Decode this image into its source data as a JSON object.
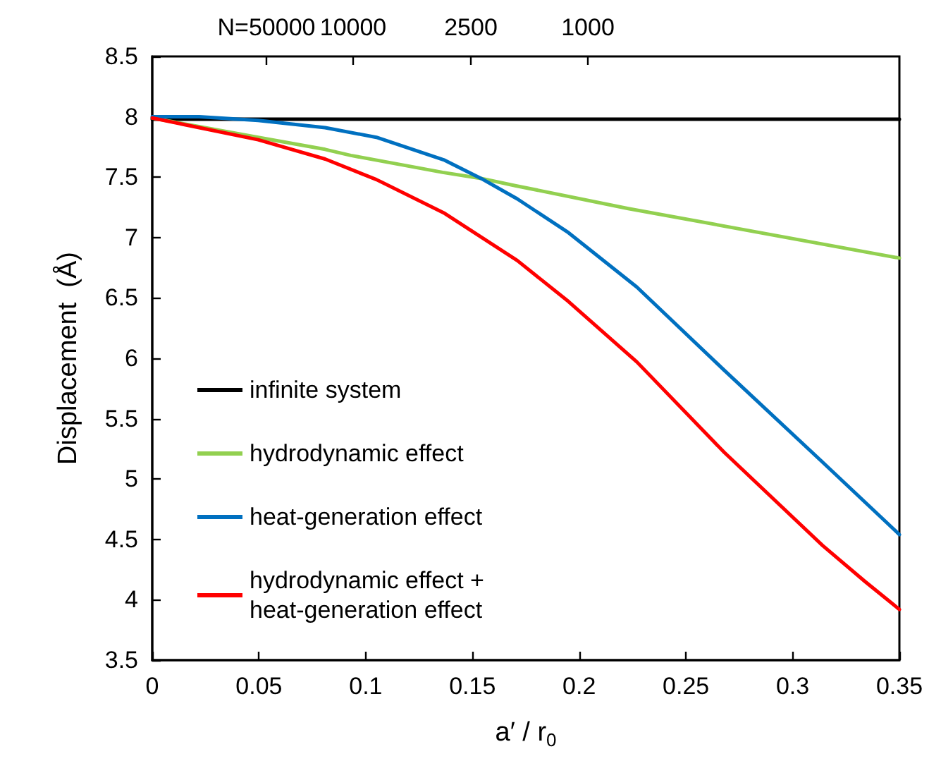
{
  "chart_data": {
    "type": "line",
    "xlabel": "a′ / r$_{0}$",
    "ylabel": "Displacement  (Å)",
    "xlim": [
      0,
      0.35
    ],
    "xticks": [
      0,
      0.05,
      0.1,
      0.15,
      0.2,
      0.25,
      0.3,
      0.35
    ],
    "ylim": [
      3.5,
      8.5
    ],
    "yticks": [
      3.5,
      4,
      4.5,
      5,
      5.5,
      6,
      6.5,
      7,
      7.5,
      8,
      8.5
    ],
    "annotations": [
      "N=50000",
      "10000",
      "2500",
      "1000"
    ],
    "grid": false,
    "legend": "bottom left",
    "marker": "none",
    "line_style": "solid",
    "series": [
      {
        "name": "infinite system",
        "color": "#000000",
        "x": [
          0,
          0.35
        ],
        "values": [
          7.98,
          7.98
        ]
      },
      {
        "name": "hydrodynamic effect",
        "color": "#92d050",
        "x": [
          0,
          0.0496,
          0.081,
          0.093,
          0.136,
          0.154,
          0.17,
          0.223,
          0.35
        ],
        "values": [
          7.99,
          7.83,
          7.73,
          7.68,
          7.54,
          7.49,
          7.43,
          7.24,
          6.83
        ]
      },
      {
        "name": "heat-generation effect",
        "color": "#0070c0",
        "x": [
          0,
          0.022,
          0.0496,
          0.081,
          0.105,
          0.137,
          0.154,
          0.171,
          0.195,
          0.227,
          0.268,
          0.314,
          0.35
        ],
        "values": [
          8.0,
          8.0,
          7.97,
          7.91,
          7.83,
          7.64,
          7.49,
          7.32,
          7.04,
          6.59,
          5.9,
          5.14,
          4.54
        ]
      },
      {
        "name": "hydrodynamic effect +\nheat-generation effect",
        "color": "#ff0000",
        "x": [
          0,
          0.0496,
          0.081,
          0.105,
          0.137,
          0.171,
          0.195,
          0.227,
          0.268,
          0.314,
          0.334,
          0.35
        ],
        "values": [
          7.99,
          7.81,
          7.65,
          7.48,
          7.2,
          6.81,
          6.47,
          5.97,
          5.22,
          4.45,
          4.15,
          3.92
        ]
      }
    ]
  }
}
